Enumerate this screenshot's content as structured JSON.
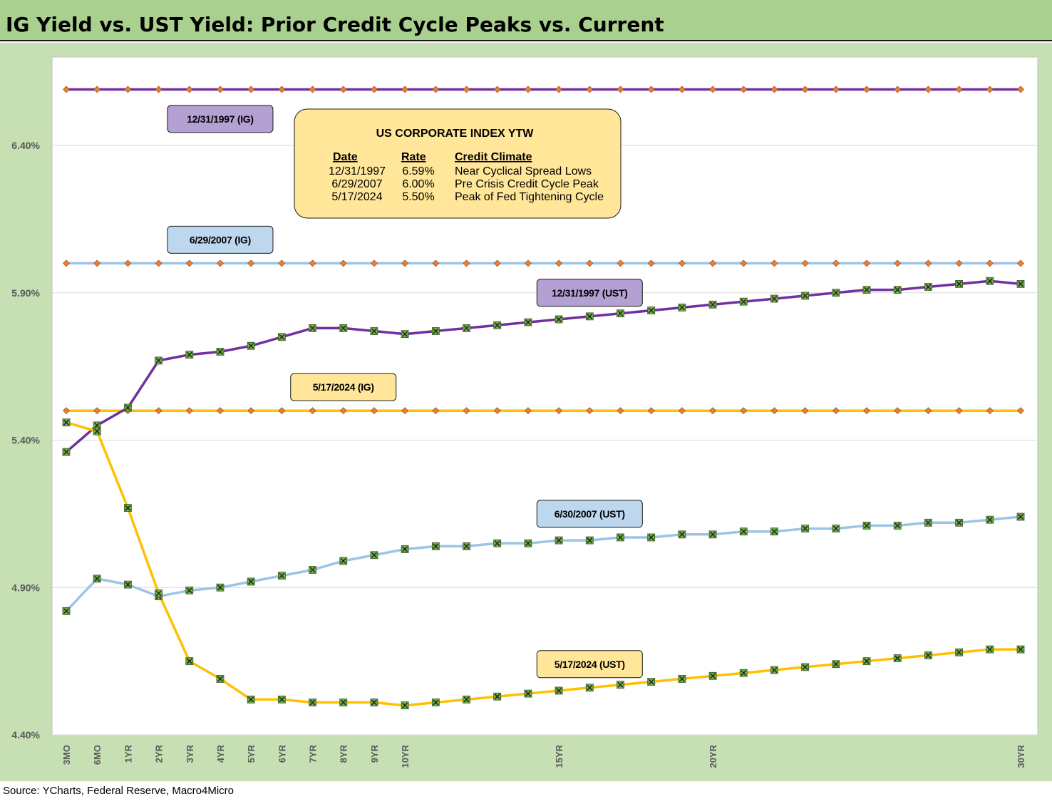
{
  "title": "IG Yield vs. UST Yield: Prior Credit Cycle Peaks vs. Current",
  "source": "Source: YCharts, Federal Reserve, Macro4Micro",
  "colors": {
    "header_bg": "#a9d08e",
    "frame_bg": "#c6e0b4",
    "purple": "#7030a0",
    "light_blue": "#9dc3e6",
    "gold": "#ffc000",
    "ig_marker": "#ed7d31",
    "ust_marker": "#70ad47",
    "label_purple": "#b4a0d2",
    "label_blue": "#bdd7ee",
    "label_gold": "#ffe699"
  },
  "info_box": {
    "title": "US CORPORATE INDEX YTW",
    "headers": [
      "Date",
      "Rate",
      "Credit Climate"
    ],
    "rows": [
      [
        "12/31/1997",
        "6.59%",
        "Near Cyclical Spread Lows"
      ],
      [
        "6/29/2007",
        "6.00%",
        "Pre Crisis Credit Cycle Peak"
      ],
      [
        "5/17/2024",
        "5.50%",
        "Peak of Fed Tightening Cycle"
      ]
    ]
  },
  "chart_data": {
    "type": "line",
    "ylim": [
      4.4,
      6.7
    ],
    "yticks": [
      4.4,
      4.9,
      5.4,
      5.9,
      6.4
    ],
    "ytick_labels": [
      "4.40%",
      "4.90%",
      "5.40%",
      "5.90%",
      "6.40%"
    ],
    "x_count": 32,
    "x_tick_labels": [
      {
        "index": 0,
        "label": "3MO"
      },
      {
        "index": 1,
        "label": "6MO"
      },
      {
        "index": 2,
        "label": "1YR"
      },
      {
        "index": 3,
        "label": "2YR"
      },
      {
        "index": 4,
        "label": "3YR"
      },
      {
        "index": 5,
        "label": "4YR"
      },
      {
        "index": 6,
        "label": "5YR"
      },
      {
        "index": 7,
        "label": "6YR"
      },
      {
        "index": 8,
        "label": "7YR"
      },
      {
        "index": 9,
        "label": "8YR"
      },
      {
        "index": 10,
        "label": "9YR"
      },
      {
        "index": 11,
        "label": "10YR"
      },
      {
        "index": 16,
        "label": "15YR"
      },
      {
        "index": 21,
        "label": "20YR"
      },
      {
        "index": 31,
        "label": "30YR"
      }
    ],
    "series": [
      {
        "name": "12/31/1997 (IG)",
        "kind": "ig",
        "color_key": "purple",
        "label_color_key": "label_purple",
        "values": [
          6.59,
          6.59,
          6.59,
          6.59,
          6.59,
          6.59,
          6.59,
          6.59,
          6.59,
          6.59,
          6.59,
          6.59,
          6.59,
          6.59,
          6.59,
          6.59,
          6.59,
          6.59,
          6.59,
          6.59,
          6.59,
          6.59,
          6.59,
          6.59,
          6.59,
          6.59,
          6.59,
          6.59,
          6.59,
          6.59,
          6.59,
          6.59
        ],
        "label_anchor": {
          "index": 5,
          "value": 6.49
        }
      },
      {
        "name": "6/29/2007 (IG)",
        "kind": "ig",
        "color_key": "light_blue",
        "label_color_key": "label_blue",
        "values": [
          6.0,
          6.0,
          6.0,
          6.0,
          6.0,
          6.0,
          6.0,
          6.0,
          6.0,
          6.0,
          6.0,
          6.0,
          6.0,
          6.0,
          6.0,
          6.0,
          6.0,
          6.0,
          6.0,
          6.0,
          6.0,
          6.0,
          6.0,
          6.0,
          6.0,
          6.0,
          6.0,
          6.0,
          6.0,
          6.0,
          6.0,
          6.0
        ],
        "label_anchor": {
          "index": 5,
          "value": 6.08
        }
      },
      {
        "name": "5/17/2024 (IG)",
        "kind": "ig",
        "color_key": "gold",
        "label_color_key": "label_gold",
        "values": [
          5.5,
          5.5,
          5.5,
          5.5,
          5.5,
          5.5,
          5.5,
          5.5,
          5.5,
          5.5,
          5.5,
          5.5,
          5.5,
          5.5,
          5.5,
          5.5,
          5.5,
          5.5,
          5.5,
          5.5,
          5.5,
          5.5,
          5.5,
          5.5,
          5.5,
          5.5,
          5.5,
          5.5,
          5.5,
          5.5,
          5.5,
          5.5
        ],
        "label_anchor": {
          "index": 9,
          "value": 5.58
        }
      },
      {
        "name": "12/31/1997 (UST)",
        "kind": "ust",
        "color_key": "purple",
        "label_color_key": "label_purple",
        "values": [
          5.36,
          5.45,
          5.51,
          5.67,
          5.69,
          5.7,
          5.72,
          5.75,
          5.78,
          5.78,
          5.77,
          5.76,
          5.77,
          5.78,
          5.79,
          5.8,
          5.81,
          5.82,
          5.83,
          5.84,
          5.85,
          5.86,
          5.87,
          5.88,
          5.89,
          5.9,
          5.91,
          5.91,
          5.92,
          5.93,
          5.94,
          5.93
        ],
        "label_anchor": {
          "index": 17,
          "value": 5.9
        }
      },
      {
        "name": "6/30/2007 (UST)",
        "kind": "ust",
        "color_key": "light_blue",
        "label_color_key": "label_blue",
        "values": [
          4.82,
          4.93,
          4.91,
          4.87,
          4.89,
          4.9,
          4.92,
          4.94,
          4.96,
          4.99,
          5.01,
          5.03,
          5.04,
          5.04,
          5.05,
          5.05,
          5.06,
          5.06,
          5.07,
          5.07,
          5.08,
          5.08,
          5.09,
          5.09,
          5.1,
          5.1,
          5.11,
          5.11,
          5.12,
          5.12,
          5.13,
          5.14
        ],
        "label_anchor": {
          "index": 17,
          "value": 5.15
        }
      },
      {
        "name": "5/17/2024 (UST)",
        "kind": "ust",
        "color_key": "gold",
        "label_color_key": "label_gold",
        "values": [
          5.46,
          5.43,
          5.17,
          4.88,
          4.65,
          4.59,
          4.52,
          4.52,
          4.51,
          4.51,
          4.51,
          4.5,
          4.51,
          4.52,
          4.53,
          4.54,
          4.55,
          4.56,
          4.57,
          4.58,
          4.59,
          4.6,
          4.61,
          4.62,
          4.63,
          4.64,
          4.65,
          4.66,
          4.67,
          4.68,
          4.69,
          4.69
        ],
        "label_anchor": {
          "index": 17,
          "value": 4.64
        }
      }
    ]
  }
}
